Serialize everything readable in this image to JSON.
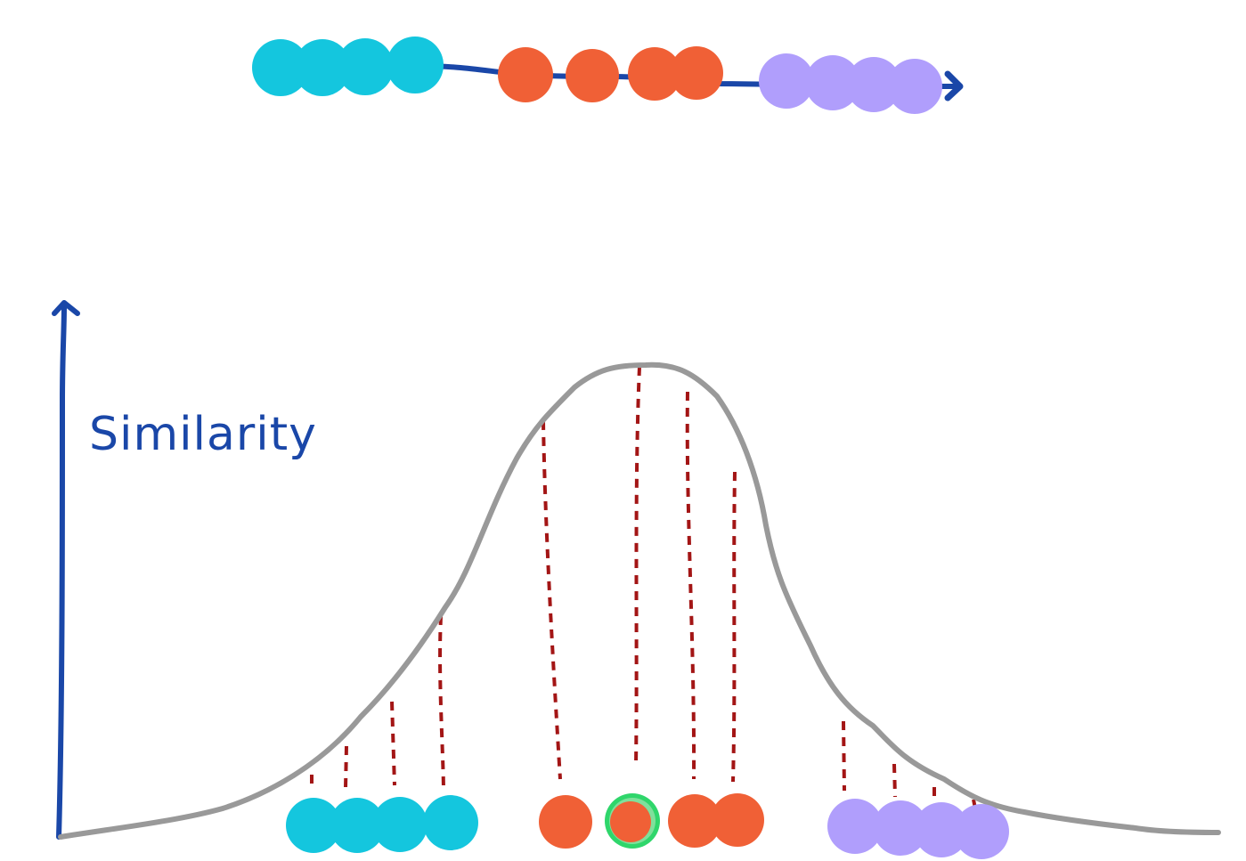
{
  "y_axis_label": "Similarity",
  "colors": {
    "axis": "#1a47a8",
    "sequence_line": "#1a47a8",
    "curve": "#999999",
    "dashes": "#a31515",
    "group_cyan": "#14c6de",
    "group_orange": "#f06036",
    "group_purple": "#b09efc",
    "highlight_ring": "#2fd66b"
  },
  "icons": [
    "up-arrow-icon",
    "right-arrow-icon"
  ]
}
